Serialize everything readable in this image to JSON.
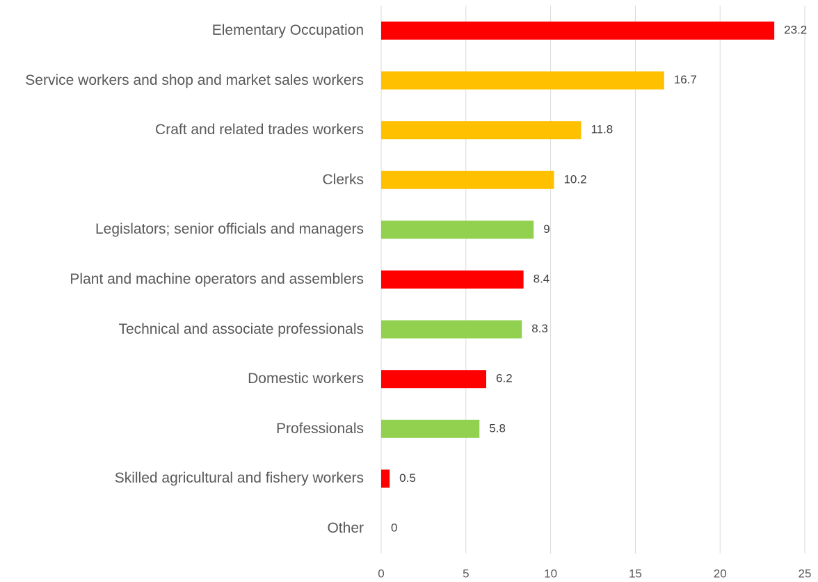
{
  "chart_data": {
    "type": "bar",
    "orientation": "horizontal",
    "categories": [
      "Elementary Occupation",
      "Service workers and shop and market sales workers",
      "Craft and related trades workers",
      "Clerks",
      "Legislators; senior officials and managers",
      "Plant and machine operators and assemblers",
      "Technical and associate professionals",
      "Domestic workers",
      "Professionals",
      "Skilled agricultural and fishery workers",
      "Other"
    ],
    "values": [
      23.2,
      16.7,
      11.8,
      10.2,
      9,
      8.4,
      8.3,
      6.2,
      5.8,
      0.5,
      0
    ],
    "colors": [
      "#ff0000",
      "#ffc000",
      "#ffc000",
      "#ffc000",
      "#92d050",
      "#ff0000",
      "#92d050",
      "#ff0000",
      "#92d050",
      "#ff0000",
      "#ff0000"
    ],
    "xlim": [
      0,
      25
    ],
    "xticks": [
      0,
      5,
      10,
      15,
      20,
      25
    ],
    "grid": true
  }
}
